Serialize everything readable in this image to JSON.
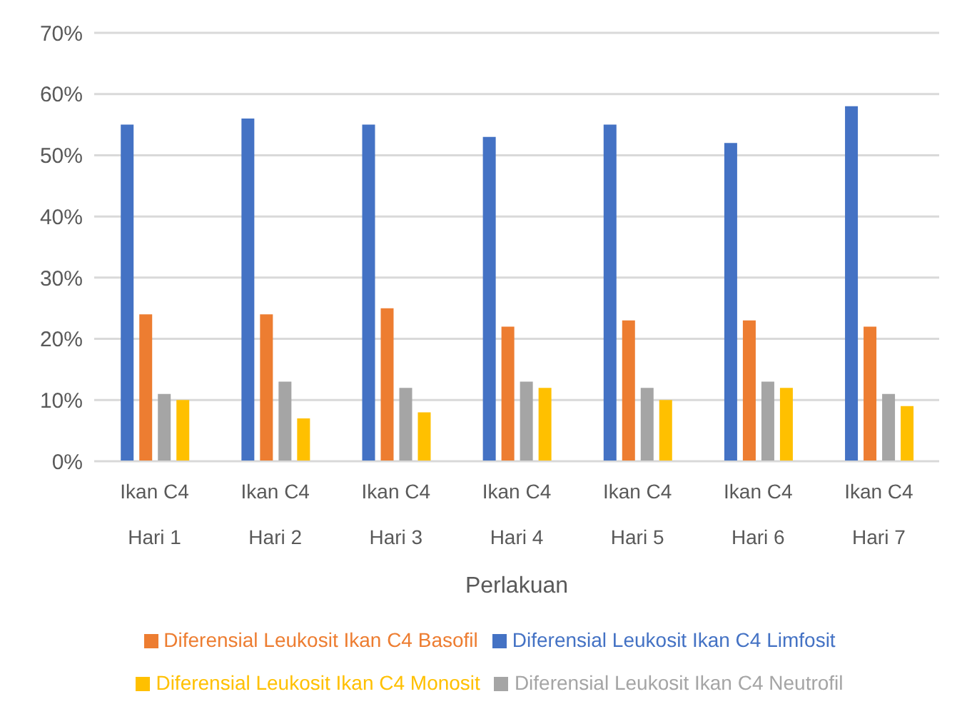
{
  "chart_data": {
    "type": "bar",
    "xlabel": "Perlakuan",
    "categories": [
      "Ikan C4\nHari 1",
      "Ikan C4\nHari 2",
      "Ikan C4\nHari 3",
      "Ikan C4\nHari 4",
      "Ikan C4\nHari 5",
      "Ikan C4\nHari 6",
      "Ikan C4\nHari 7"
    ],
    "series": [
      {
        "name": "Diferensial Leukosit Ikan C4 Limfosit",
        "color": "#4472c4",
        "values": [
          55,
          56,
          55,
          53,
          55,
          52,
          58
        ]
      },
      {
        "name": "Diferensial Leukosit Ikan C4 Basofil",
        "color": "#ed7d31",
        "values": [
          24,
          24,
          25,
          22,
          23,
          23,
          22
        ]
      },
      {
        "name": "Diferensial Leukosit Ikan C4 Neutrofil",
        "color": "#a5a5a5",
        "values": [
          11,
          13,
          12,
          13,
          12,
          13,
          11
        ]
      },
      {
        "name": "Diferensial Leukosit Ikan C4 Monosit",
        "color": "#ffc000",
        "values": [
          10,
          7,
          8,
          12,
          10,
          12,
          9
        ]
      }
    ],
    "ylim": [
      0,
      70
    ],
    "yticks": [
      {
        "value": 0,
        "label": "0%"
      },
      {
        "value": 10,
        "label": "10%"
      },
      {
        "value": 20,
        "label": "20%"
      },
      {
        "value": 30,
        "label": "30%"
      },
      {
        "value": 40,
        "label": "40%"
      },
      {
        "value": 50,
        "label": "50%"
      },
      {
        "value": 60,
        "label": "60%"
      },
      {
        "value": 70,
        "label": "70%"
      }
    ],
    "grid": "y",
    "legend": "bottom"
  }
}
